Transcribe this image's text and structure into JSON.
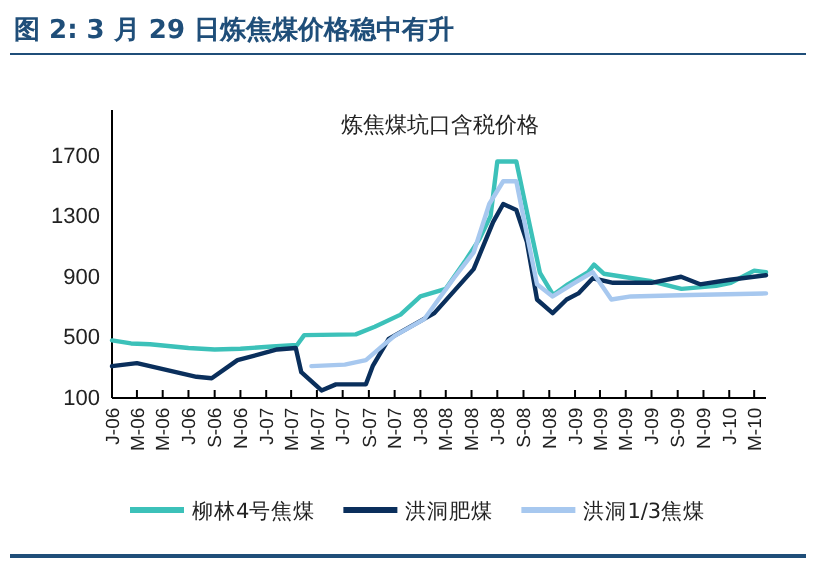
{
  "chart_data": {
    "type": "line",
    "title": "图 2: 3 月 29 日炼焦煤价格稳中有升",
    "subtitle": "炼焦煤坑口含税价格",
    "ylim": [
      100,
      2000
    ],
    "yticks": [
      100,
      500,
      900,
      1300,
      1700
    ],
    "xlim": [
      "2006-01-01",
      "2010-03-29"
    ],
    "xticks": [
      {
        "value": "2006-01",
        "label": "J-06"
      },
      {
        "value": "2006-03",
        "label": "M-06"
      },
      {
        "value": "2006-05",
        "label": "M-06"
      },
      {
        "value": "2006-07",
        "label": "J-06"
      },
      {
        "value": "2006-09",
        "label": "S-06"
      },
      {
        "value": "2006-11",
        "label": "N-06"
      },
      {
        "value": "2007-01",
        "label": "J-07"
      },
      {
        "value": "2007-03",
        "label": "M-07"
      },
      {
        "value": "2007-05",
        "label": "M-07"
      },
      {
        "value": "2007-07",
        "label": "J-07"
      },
      {
        "value": "2007-09",
        "label": "S-07"
      },
      {
        "value": "2007-11",
        "label": "N-07"
      },
      {
        "value": "2008-01",
        "label": "J-08"
      },
      {
        "value": "2008-03",
        "label": "M-08"
      },
      {
        "value": "2008-05",
        "label": "M-08"
      },
      {
        "value": "2008-07",
        "label": "J-08"
      },
      {
        "value": "2008-09",
        "label": "S-08"
      },
      {
        "value": "2008-11",
        "label": "N-08"
      },
      {
        "value": "2009-01",
        "label": "J-09"
      },
      {
        "value": "2009-03",
        "label": "M-09"
      },
      {
        "value": "2009-05",
        "label": "M-09"
      },
      {
        "value": "2009-07",
        "label": "J-09"
      },
      {
        "value": "2009-09",
        "label": "S-09"
      },
      {
        "value": "2009-11",
        "label": "N-09"
      },
      {
        "value": "2010-01",
        "label": "J-10"
      },
      {
        "value": "2010-03",
        "label": "M-10"
      }
    ],
    "grid": false,
    "legend": "bottom",
    "marker": "none",
    "line_style": "solid",
    "series": [
      {
        "name": "柳林4号焦煤",
        "color": "#3cc1b9",
        "x": [
          "2006-01-01",
          "2006-02-15",
          "2006-04-01",
          "2006-07-01",
          "2006-09-01",
          "2006-11-01",
          "2007-01-15",
          "2007-03-15",
          "2007-04-01",
          "2007-08-01",
          "2007-09-15",
          "2007-11-15",
          "2008-01-01",
          "2008-03-01",
          "2008-04-15",
          "2008-05-20",
          "2008-06-15",
          "2008-07-01",
          "2008-08-15",
          "2008-09-15",
          "2008-10-10",
          "2008-11-10",
          "2008-12-15",
          "2009-02-01",
          "2009-02-15",
          "2009-03-10",
          "2009-07-01",
          "2009-09-10",
          "2009-12-01",
          "2010-01-05",
          "2010-03-01",
          "2010-03-29"
        ],
        "values": [
          480,
          460,
          455,
          430,
          420,
          425,
          440,
          450,
          515,
          520,
          570,
          650,
          770,
          820,
          1000,
          1150,
          1300,
          1660,
          1660,
          1250,
          925,
          780,
          850,
          930,
          980,
          920,
          870,
          820,
          840,
          860,
          940,
          930
        ]
      },
      {
        "name": "洪洞肥煤",
        "color": "#0a2f5c",
        "x": [
          "2006-01-01",
          "2006-03-01",
          "2006-07-20",
          "2006-08-25",
          "2006-10-25",
          "2007-01-27",
          "2007-03-12",
          "2007-03-25",
          "2007-05-12",
          "2007-06-15",
          "2007-08-25",
          "2007-09-10",
          "2007-10-18",
          "2008-02-03",
          "2008-05-06",
          "2008-06-21",
          "2008-07-15",
          "2008-08-15",
          "2008-09-09",
          "2008-10-03",
          "2008-11-09",
          "2008-12-12",
          "2009-01-09",
          "2009-02-12",
          "2009-04-01",
          "2009-07-01",
          "2009-09-09",
          "2009-10-24",
          "2010-01-03",
          "2010-03-29"
        ],
        "values": [
          310,
          330,
          240,
          230,
          350,
          420,
          430,
          270,
          150,
          190,
          190,
          310,
          490,
          660,
          950,
          1260,
          1380,
          1340,
          1130,
          750,
          660,
          750,
          790,
          890,
          860,
          860,
          900,
          850,
          880,
          910
        ]
      },
      {
        "name": "洪洞1/3焦煤",
        "color": "#a7c8ef",
        "x": [
          "2007-04-18",
          "2007-07-06",
          "2007-08-25",
          "2007-10-10",
          "2007-11-01",
          "2008-01-10",
          "2008-03-20",
          "2008-05-06",
          "2008-06-12",
          "2008-07-15",
          "2008-08-15",
          "2008-09-09",
          "2008-10-03",
          "2008-11-09",
          "2008-12-25",
          "2009-02-12",
          "2009-03-28",
          "2009-05-13",
          "2009-10-01",
          "2010-03-29"
        ],
        "values": [
          310,
          320,
          350,
          460,
          510,
          620,
          890,
          1060,
          1380,
          1530,
          1530,
          1180,
          850,
          770,
          850,
          930,
          750,
          770,
          780,
          790
        ]
      }
    ]
  }
}
